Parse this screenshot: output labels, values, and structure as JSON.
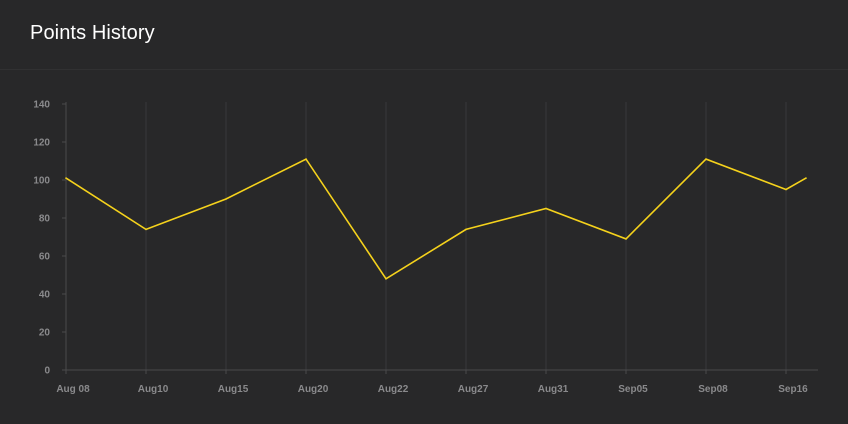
{
  "title": "Points History",
  "colors": {
    "background": "#282829",
    "grid": "#38383a",
    "axis": "#4a4a4c",
    "line": "#f5d21c",
    "tick_text": "#8a8a8c"
  },
  "chart_data": {
    "type": "line",
    "title": "Points History",
    "xlabel": "",
    "ylabel": "",
    "categories": [
      "Aug 08",
      "Aug10",
      "Aug15",
      "Aug20",
      "Aug22",
      "Aug27",
      "Aug31",
      "Sep05",
      "Sep08",
      "Sep16",
      ""
    ],
    "series": [
      {
        "values": [
          101,
          74,
          90,
          111,
          48,
          74,
          85,
          69,
          111,
          95,
          101
        ]
      }
    ],
    "ylim": [
      0,
      140
    ],
    "yticks": [
      0,
      20,
      40,
      60,
      80,
      100,
      120,
      140
    ],
    "grid": "vertical"
  }
}
